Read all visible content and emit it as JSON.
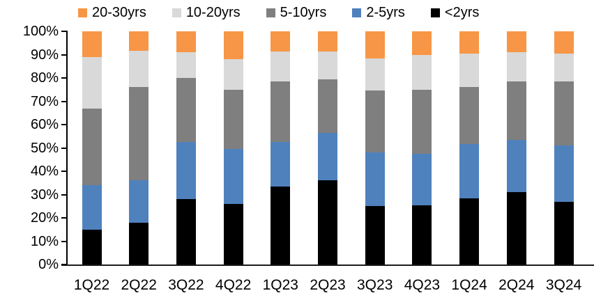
{
  "chart_data": {
    "type": "bar",
    "variant": "stacked-100-percent",
    "title": "",
    "xlabel": "",
    "ylabel": "",
    "ylim": [
      0,
      100
    ],
    "grid": false,
    "legend_position": "top",
    "categories": [
      "1Q22",
      "2Q22",
      "3Q22",
      "4Q22",
      "1Q23",
      "2Q23",
      "3Q23",
      "4Q23",
      "1Q24",
      "2Q24",
      "3Q24"
    ],
    "series": [
      {
        "name": "<2yrs",
        "color": "#000000",
        "values": [
          15,
          18,
          28,
          26,
          33.5,
          36,
          25,
          25.5,
          28.5,
          31,
          27
        ]
      },
      {
        "name": "2-5yrs",
        "color": "#4F81BD",
        "values": [
          19,
          18,
          24.5,
          23.5,
          19,
          20.5,
          23,
          22,
          23,
          22.5,
          24
        ]
      },
      {
        "name": "5-10yrs",
        "color": "#7F7F7F",
        "values": [
          33,
          40,
          27.5,
          25.5,
          26,
          23,
          26.5,
          27.5,
          24.5,
          25,
          27.5
        ]
      },
      {
        "name": "10-20yrs",
        "color": "#D9D9D9",
        "values": [
          22,
          15.5,
          11,
          13,
          13,
          12,
          14,
          15,
          14.5,
          12.5,
          12
        ]
      },
      {
        "name": "20-30yrs",
        "color": "#F79646",
        "values": [
          11,
          8.5,
          9,
          12,
          8.5,
          8.5,
          11.5,
          10,
          9.5,
          9,
          9.5
        ]
      }
    ],
    "legend_labels": [
      "20-30yrs",
      "10-20yrs",
      "5-10yrs",
      "2-5yrs",
      "<2yrs"
    ],
    "y_tick_labels": [
      "100%",
      "90%",
      "80%",
      "70%",
      "60%",
      "50%",
      "40%",
      "30%",
      "20%",
      "10%",
      "0%"
    ]
  }
}
